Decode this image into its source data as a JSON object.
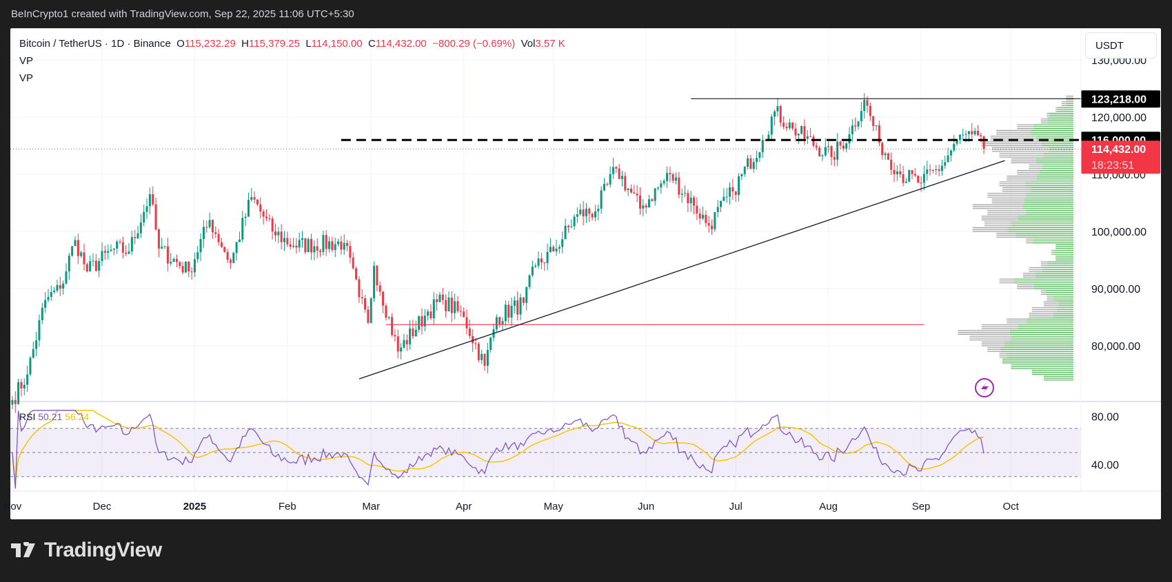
{
  "header": {
    "caption": "BeInCrypto1 created with TradingView.com, Sep 22, 2025 11:06 UTC+5:30"
  },
  "legend": {
    "symbol": "Bitcoin / TetherUS · 1D · Binance",
    "o_label": "O",
    "open": "115,232.29",
    "h_label": "H",
    "high": "115,379.25",
    "l_label": "L",
    "low": "114,150.00",
    "c_label": "C",
    "close": "114,432.00",
    "change": "−800.29 (−0.69%)",
    "vol_label": "Vol",
    "volume": "3.57 K",
    "indicators": [
      "VP",
      "VP"
    ]
  },
  "currency_button": "USDT",
  "rsi": {
    "label": "RSI",
    "value": "50.21",
    "ma_value": "56.24",
    "axis_labels": [
      "80.00",
      "40.00"
    ],
    "levels": {
      "upper": 70,
      "middle": 50,
      "lower": 30
    }
  },
  "footer": {
    "brand": "TradingView"
  },
  "colors": {
    "up": "#089981",
    "down": "#f23645",
    "vp_up": "#4caf50",
    "vp_other": "#9e9e9e",
    "rsi": "#7e57c2",
    "rsi_ma": "#f7c600",
    "poc": "#f23645"
  },
  "chart_data": {
    "type": "candlestick",
    "symbol": "BTCUSDT",
    "timeframe": "1D",
    "x_ticks": [
      {
        "label": "Nov",
        "date": "2024-11-01"
      },
      {
        "label": "Dec",
        "date": "2024-12-01"
      },
      {
        "label": "2025",
        "date": "2025-01-01"
      },
      {
        "label": "Feb",
        "date": "2025-02-01"
      },
      {
        "label": "Mar",
        "date": "2025-03-01"
      },
      {
        "label": "Apr",
        "date": "2025-04-01"
      },
      {
        "label": "May",
        "date": "2025-05-01"
      },
      {
        "label": "Jun",
        "date": "2025-06-01"
      },
      {
        "label": "Jul",
        "date": "2025-07-01"
      },
      {
        "label": "Aug",
        "date": "2025-08-01"
      },
      {
        "label": "Sep",
        "date": "2025-09-01"
      },
      {
        "label": "Oct",
        "date": "2025-10-01"
      }
    ],
    "y_ticks": [
      "130,000.00",
      "120,000.00",
      "110,000.00",
      "100,000.00",
      "90,000.00",
      "80,000.00"
    ],
    "ylim": [
      70000,
      135000
    ],
    "approx_closes": [
      [
        "2024-11-01",
        70500
      ],
      [
        "2024-11-06",
        75000
      ],
      [
        "2024-11-12",
        88000
      ],
      [
        "2024-11-17",
        90000
      ],
      [
        "2024-11-22",
        98500
      ],
      [
        "2024-11-26",
        93000
      ],
      [
        "2024-12-05",
        97000
      ],
      [
        "2024-12-10",
        96500
      ],
      [
        "2024-12-17",
        106500
      ],
      [
        "2024-12-20",
        97000
      ],
      [
        "2024-12-30",
        93000
      ],
      [
        "2025-01-06",
        102000
      ],
      [
        "2025-01-13",
        94500
      ],
      [
        "2025-01-20",
        106000
      ],
      [
        "2025-01-27",
        100000
      ],
      [
        "2025-02-03",
        97500
      ],
      [
        "2025-02-20",
        98000
      ],
      [
        "2025-02-25",
        88500
      ],
      [
        "2025-02-28",
        84000
      ],
      [
        "2025-03-02",
        94000
      ],
      [
        "2025-03-10",
        79000
      ],
      [
        "2025-03-20",
        86000
      ],
      [
        "2025-03-25",
        88000
      ],
      [
        "2025-04-01",
        85000
      ],
      [
        "2025-04-08",
        76500
      ],
      [
        "2025-04-12",
        85000
      ],
      [
        "2025-04-21",
        87500
      ],
      [
        "2025-04-25",
        94000
      ],
      [
        "2025-05-01",
        96500
      ],
      [
        "2025-05-09",
        103000
      ],
      [
        "2025-05-15",
        103500
      ],
      [
        "2025-05-22",
        111000
      ],
      [
        "2025-05-30",
        104000
      ],
      [
        "2025-06-09",
        110000
      ],
      [
        "2025-06-17",
        104500
      ],
      [
        "2025-06-22",
        101000
      ],
      [
        "2025-06-30",
        107000
      ],
      [
        "2025-07-10",
        116000
      ],
      [
        "2025-07-14",
        121000
      ],
      [
        "2025-07-20",
        118000
      ],
      [
        "2025-08-02",
        113000
      ],
      [
        "2025-08-08",
        117000
      ],
      [
        "2025-08-13",
        123000
      ],
      [
        "2025-08-18",
        115500
      ],
      [
        "2025-08-25",
        110000
      ],
      [
        "2025-09-01",
        108500
      ],
      [
        "2025-09-08",
        111500
      ],
      [
        "2025-09-13",
        116000
      ],
      [
        "2025-09-18",
        117000
      ],
      [
        "2025-09-22",
        114432
      ]
    ],
    "price_badges": [
      {
        "label": "123,218.00",
        "price": 123218,
        "style": "black"
      },
      {
        "label": "116,000.00",
        "price": 116000,
        "style": "black"
      },
      {
        "label": "114,432.00",
        "price": 114432,
        "countdown": "18:23:51",
        "style": "red"
      }
    ],
    "drawings": [
      {
        "type": "horizontal",
        "price": 123218,
        "from": "2025-06-16",
        "style": "solid",
        "color": "#131722"
      },
      {
        "type": "horizontal",
        "price": 116000,
        "from": "2025-02-19",
        "style": "dashed",
        "color": "#000000"
      },
      {
        "type": "horizontal",
        "price": 83700,
        "from": "2025-03-06",
        "to": "2025-09-02",
        "style": "solid",
        "color": "#f23645"
      },
      {
        "type": "trendline",
        "from": [
          "2025-02-25",
          74200
        ],
        "to": [
          "2025-09-29",
          112400
        ],
        "color": "#131722"
      }
    ],
    "volume_profile": {
      "from_price": 74000,
      "bin_size": 1000,
      "volumes": [
        0.2,
        0.28,
        0.42,
        0.48,
        0.5,
        0.58,
        0.62,
        0.7,
        0.78,
        0.62,
        0.45,
        0.3,
        0.28,
        0.2,
        0.18,
        0.22,
        0.38,
        0.5,
        0.34,
        0.3,
        0.22,
        0.12,
        0.15,
        0.12,
        0.32,
        0.52,
        0.68,
        0.6,
        0.62,
        0.58,
        0.68,
        0.55,
        0.58,
        0.48,
        0.5,
        0.45,
        0.38,
        0.3,
        0.42,
        0.5,
        0.55,
        0.62,
        0.56,
        0.52,
        0.38,
        0.22,
        0.18,
        0.12,
        0.08,
        0.05
      ],
      "up_share": [
        1,
        1,
        1,
        1,
        0.9,
        0.85,
        0.75,
        0.6,
        0.55,
        0.6,
        0.7,
        0.45,
        0.4,
        0.5,
        0.75,
        0.85,
        0.7,
        0.8,
        0.75,
        0.7,
        0.8,
        1,
        0.85,
        1,
        0.85,
        0.75,
        0.65,
        0.7,
        0.6,
        0.55,
        0.5,
        0.6,
        0.55,
        0.6,
        0.65,
        0.55,
        0.6,
        0.7,
        0.6,
        0.4,
        0.3,
        0.35,
        0.45,
        0.55,
        0.7,
        0.8,
        0.9,
        0.9,
        0.6,
        0
      ]
    }
  }
}
